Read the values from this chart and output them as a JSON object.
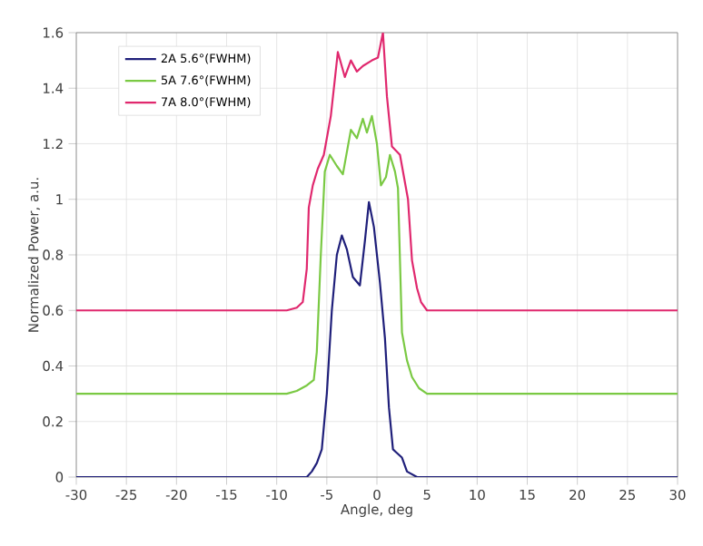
{
  "chart_data": {
    "type": "line",
    "xlabel": "Angle, deg",
    "ylabel": "Normalized Power, a.u.",
    "xlim": [
      -30,
      30
    ],
    "ylim": [
      0,
      1.6
    ],
    "xticks": [
      -30,
      -25,
      -20,
      -15,
      -10,
      -5,
      0,
      5,
      10,
      15,
      20,
      25,
      30
    ],
    "yticks": [
      0,
      0.2,
      0.4,
      0.6,
      0.8,
      1,
      1.2,
      1.4,
      1.6
    ],
    "grid": true,
    "legend": "top left",
    "marker": "none",
    "line_style": "solid",
    "series": [
      {
        "name": "2A 5.6°(FWHM)",
        "color": "#1f1f7a",
        "x": [
          -30,
          -7,
          -6.5,
          -6,
          -5.5,
          -5,
          -4.5,
          -4,
          -3.5,
          -3,
          -2.4,
          -1.7,
          -1.2,
          -0.8,
          -0.3,
          0.3,
          0.8,
          1.2,
          1.6,
          1.9,
          2.5,
          3,
          4,
          30
        ],
        "values": [
          0,
          0,
          0.02,
          0.05,
          0.1,
          0.3,
          0.6,
          0.8,
          0.87,
          0.82,
          0.72,
          0.69,
          0.85,
          0.99,
          0.9,
          0.7,
          0.5,
          0.25,
          0.1,
          0.09,
          0.07,
          0.02,
          0,
          0
        ]
      },
      {
        "name": "5A 7.6°(FWHM)",
        "color": "#7ac943",
        "x": [
          -30,
          -9,
          -8,
          -7,
          -6.3,
          -6,
          -5.6,
          -5.2,
          -4.7,
          -4,
          -3.4,
          -2.6,
          -2,
          -1.4,
          -1,
          -0.5,
          0,
          0.4,
          0.9,
          1.3,
          1.8,
          2.1,
          2.5,
          3,
          3.5,
          4.2,
          5,
          30
        ],
        "values": [
          0.3,
          0.3,
          0.31,
          0.33,
          0.35,
          0.45,
          0.8,
          1.1,
          1.16,
          1.12,
          1.09,
          1.25,
          1.22,
          1.29,
          1.24,
          1.3,
          1.2,
          1.05,
          1.08,
          1.16,
          1.1,
          1.04,
          0.52,
          0.42,
          0.36,
          0.32,
          0.3,
          0.3
        ]
      },
      {
        "name": "7A 8.0°(FWHM)",
        "color": "#e0286e",
        "x": [
          -30,
          -9,
          -8,
          -7.4,
          -7,
          -6.8,
          -6.4,
          -5.9,
          -5.3,
          -4.6,
          -3.9,
          -3.2,
          -2.6,
          -2,
          -1.4,
          -0.5,
          0.1,
          0.6,
          1,
          1.5,
          2.3,
          2.7,
          3.1,
          3.5,
          4,
          4.4,
          5,
          30
        ],
        "values": [
          0.6,
          0.6,
          0.61,
          0.63,
          0.75,
          0.97,
          1.05,
          1.11,
          1.16,
          1.3,
          1.53,
          1.44,
          1.5,
          1.46,
          1.48,
          1.5,
          1.51,
          1.6,
          1.37,
          1.19,
          1.16,
          1.08,
          1.0,
          0.78,
          0.68,
          0.63,
          0.6,
          0.6
        ]
      }
    ]
  }
}
